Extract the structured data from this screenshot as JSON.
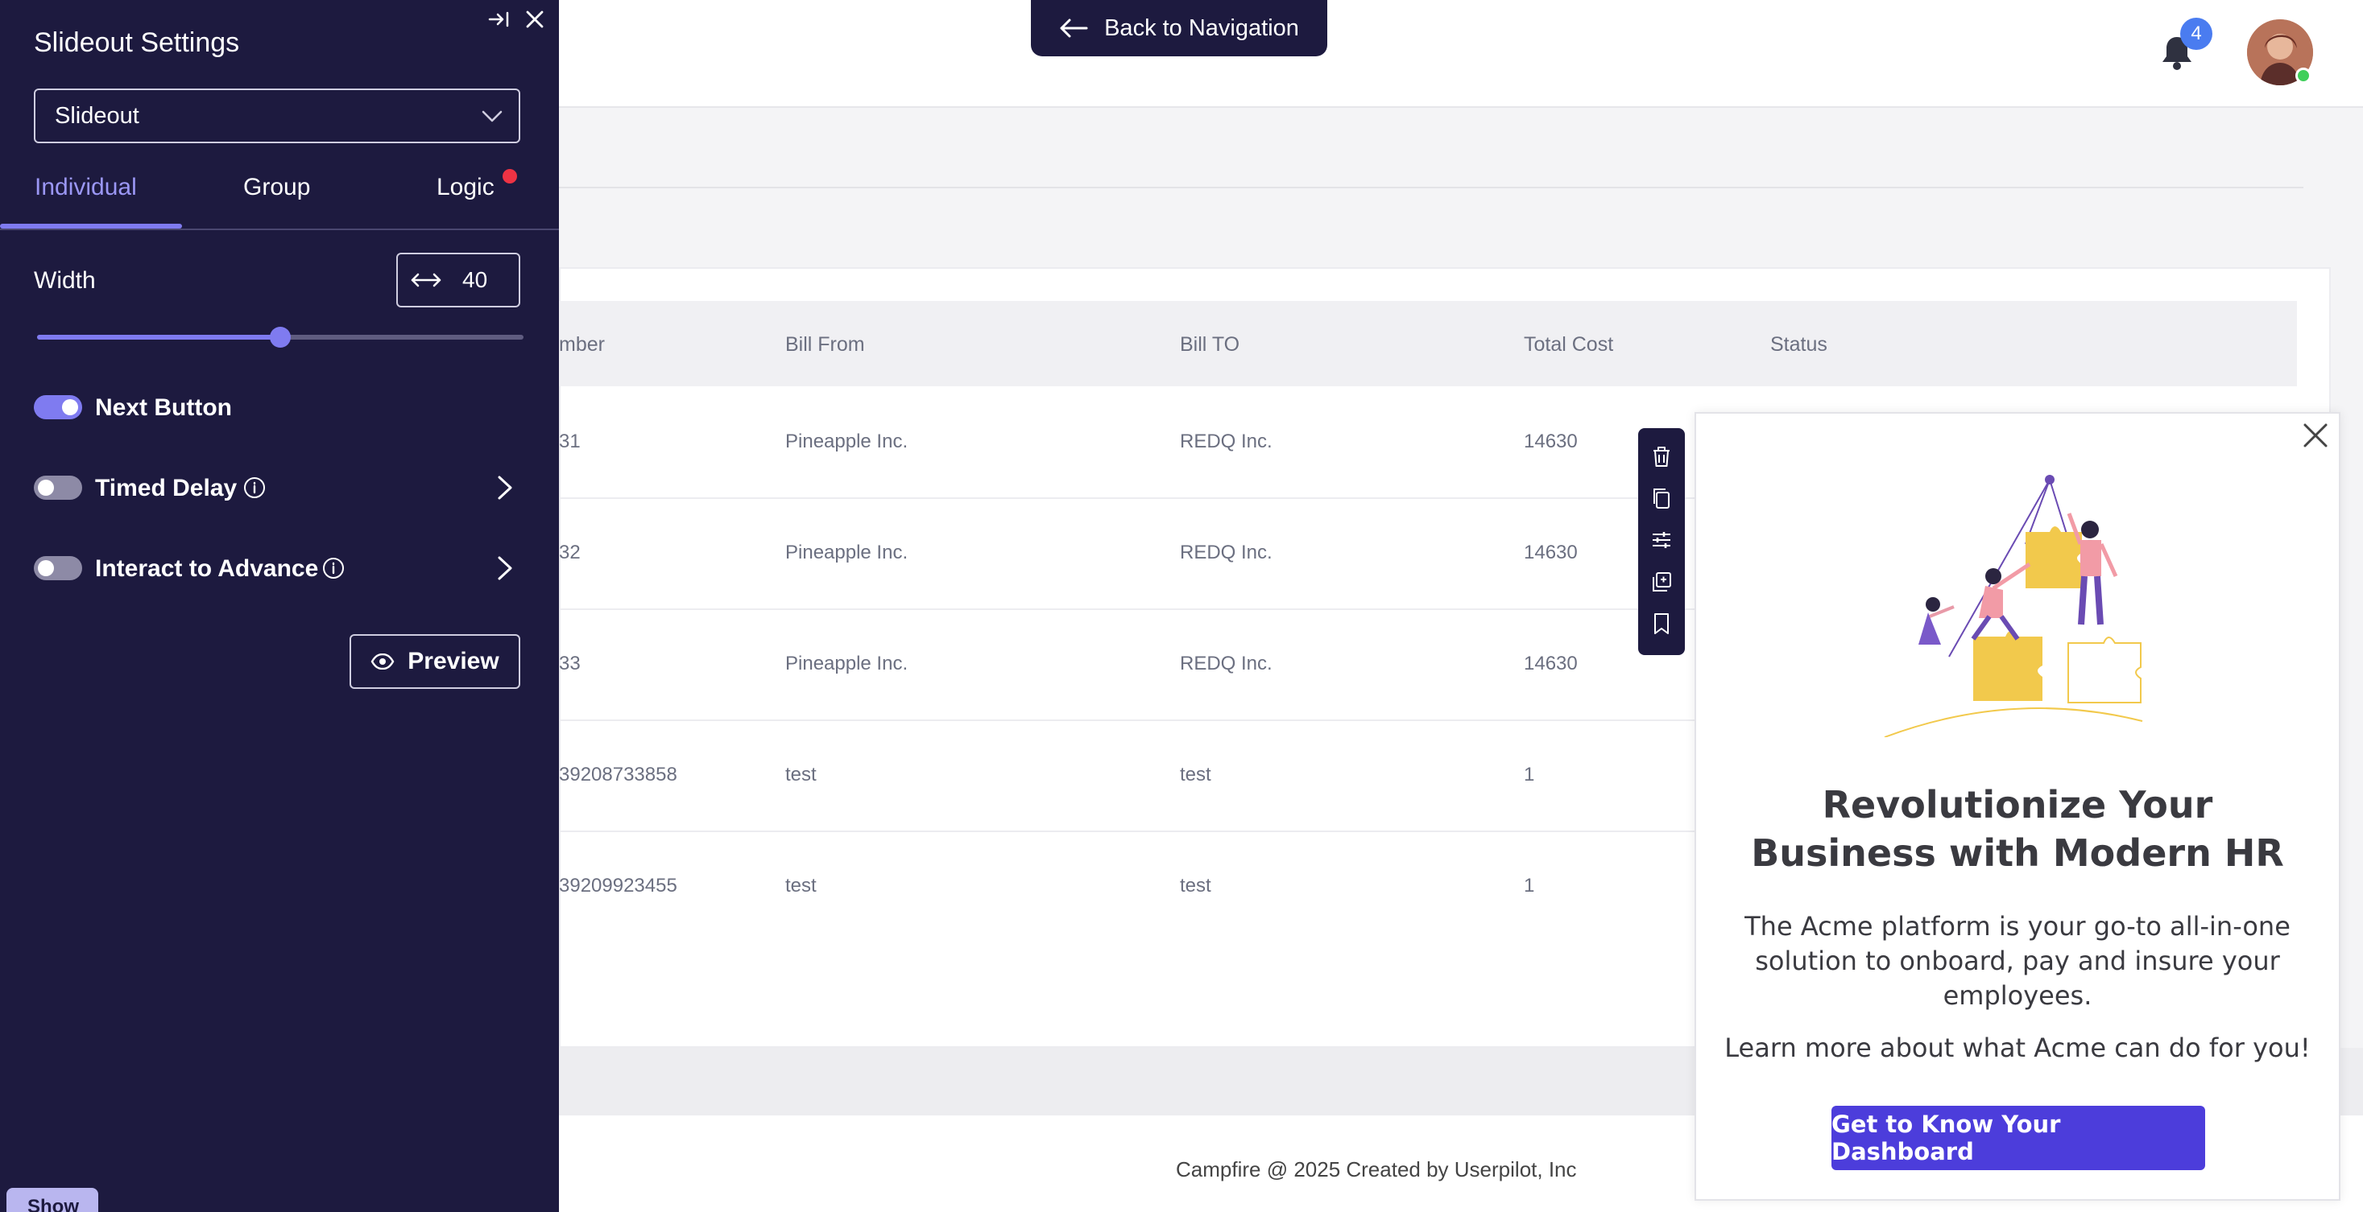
{
  "topbar": {
    "back_nav_label": "Back to Navigation",
    "notification_count": "4"
  },
  "table": {
    "headers": [
      "mber",
      "Bill From",
      "Bill TO",
      "Total Cost",
      "Status"
    ],
    "rows": [
      {
        "number": "31",
        "bill_from": "Pineapple Inc.",
        "bill_to": "REDQ Inc.",
        "total_cost": "14630"
      },
      {
        "number": "32",
        "bill_from": "Pineapple Inc.",
        "bill_to": "REDQ Inc.",
        "total_cost": "14630"
      },
      {
        "number": "33",
        "bill_from": "Pineapple Inc.",
        "bill_to": "REDQ Inc.",
        "total_cost": "14630"
      },
      {
        "number": "39208733858",
        "bill_from": "test",
        "bill_to": "test",
        "total_cost": "1"
      },
      {
        "number": "39209923455",
        "bill_from": "test",
        "bill_to": "test",
        "total_cost": "1"
      }
    ]
  },
  "footer": {
    "text": "Campfire @ 2025 Created by Userpilot, Inc"
  },
  "panel": {
    "title": "Slideout Settings",
    "type_select": "Slideout",
    "tabs": [
      {
        "label": "Individual",
        "active": true
      },
      {
        "label": "Group",
        "active": false
      },
      {
        "label": "Logic",
        "active": false
      }
    ],
    "width_label": "Width",
    "width_value": "40",
    "width_slider_fraction": 0.5,
    "next_button_label": "Next Button",
    "next_button_on": true,
    "timed_delay_label": "Timed Delay",
    "timed_delay_on": false,
    "interact_label": "Interact to Advance",
    "interact_on": false,
    "preview_label": "Preview",
    "show_label": "Show"
  },
  "toolbar": {
    "icons": [
      "trash-icon",
      "copy-icon",
      "sliders-icon",
      "duplicate-icon",
      "bookmark-icon"
    ]
  },
  "slideout": {
    "title": "Revolutionize Your Business with Modern HR",
    "body": "The Acme platform is your go-to all-in-one solution to onboard, pay and insure your employees.",
    "body2": "Learn more about what Acme can do for you!",
    "cta_label": "Get to Know Your Dashboard"
  },
  "colors": {
    "panel_bg": "#1d1a3f",
    "accent": "#7f7bf0",
    "cta": "#4c3ddb",
    "logic_dot": "#ee3344"
  }
}
